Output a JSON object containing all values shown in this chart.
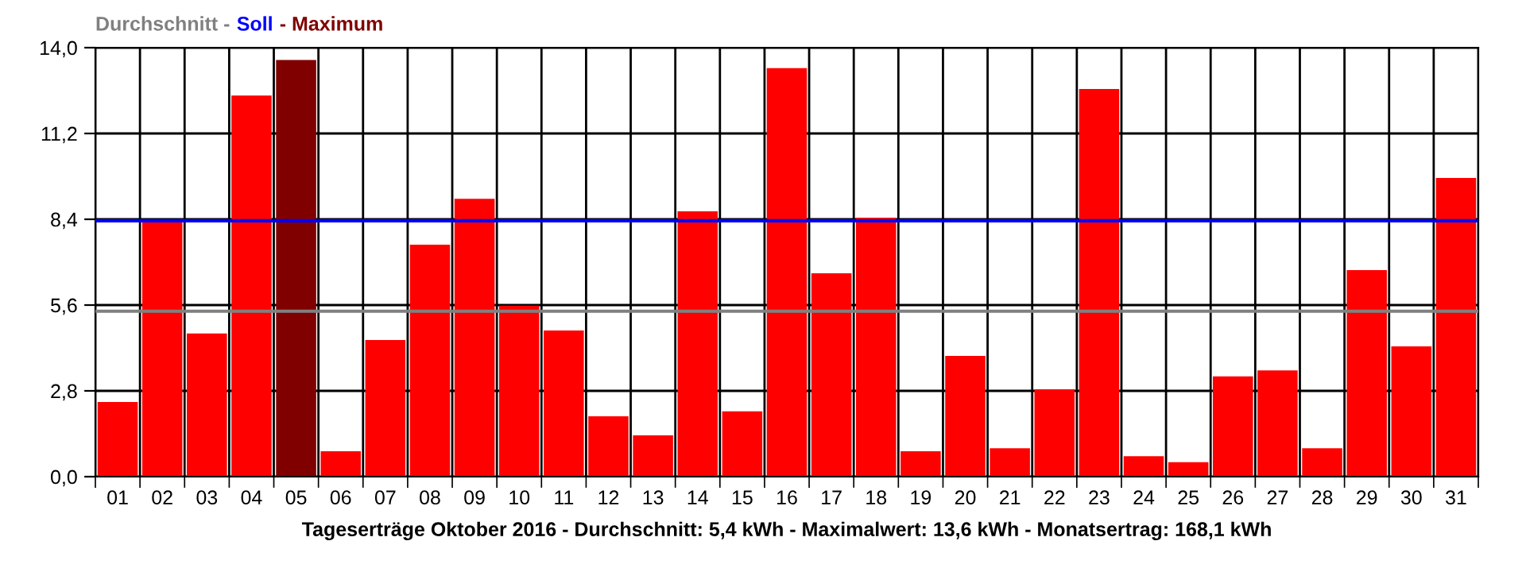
{
  "chart_data": {
    "type": "bar",
    "xlabel": "Tageserträge Oktober 2016 - Durchschnitt: 5,4 kWh - Maximalwert: 13,6 kWh - Monatsertrag: 168,1 kWh",
    "categories": [
      "01",
      "02",
      "03",
      "04",
      "05",
      "06",
      "07",
      "08",
      "09",
      "10",
      "11",
      "12",
      "13",
      "14",
      "15",
      "16",
      "17",
      "18",
      "19",
      "20",
      "21",
      "22",
      "23",
      "24",
      "25",
      "26",
      "27",
      "28",
      "29",
      "30",
      "31"
    ],
    "values": [
      2.44,
      8.38,
      4.67,
      12.44,
      13.6,
      0.83,
      4.46,
      7.57,
      9.07,
      5.58,
      4.77,
      1.97,
      1.35,
      8.66,
      2.13,
      13.33,
      6.64,
      8.45,
      0.83,
      3.94,
      0.93,
      2.85,
      12.65,
      0.67,
      0.47,
      3.27,
      3.47,
      0.93,
      6.74,
      4.25,
      9.75
    ],
    "colors": [
      "#ff0000",
      "#ff0000",
      "#ff0000",
      "#ff0000",
      "#800000",
      "#ff0000",
      "#ff0000",
      "#ff0000",
      "#ff0000",
      "#ff0000",
      "#ff0000",
      "#ff0000",
      "#ff0000",
      "#ff0000",
      "#ff0000",
      "#ff0000",
      "#ff0000",
      "#ff0000",
      "#ff0000",
      "#ff0000",
      "#ff0000",
      "#ff0000",
      "#ff0000",
      "#ff0000",
      "#ff0000",
      "#ff0000",
      "#ff0000",
      "#ff0000",
      "#ff0000",
      "#ff0000",
      "#ff0000"
    ],
    "ylim": [
      0,
      14
    ],
    "yticks": [
      {
        "value": 0,
        "label": "0,0"
      },
      {
        "value": 2.8,
        "label": "2,8"
      },
      {
        "value": 5.6,
        "label": "5,6"
      },
      {
        "value": 8.4,
        "label": "8,4"
      },
      {
        "value": 11.2,
        "label": "11,2"
      },
      {
        "value": 14,
        "label": "14,0"
      }
    ],
    "ref_lines": [
      {
        "axis": "y",
        "value": 5.4,
        "label": "Durchschnitt -",
        "color": "#808080"
      },
      {
        "axis": "y",
        "value": 8.35,
        "label": "Soll",
        "color": "#0000ff"
      }
    ],
    "title": "- Maximum",
    "grid": true,
    "legend": "top left"
  }
}
